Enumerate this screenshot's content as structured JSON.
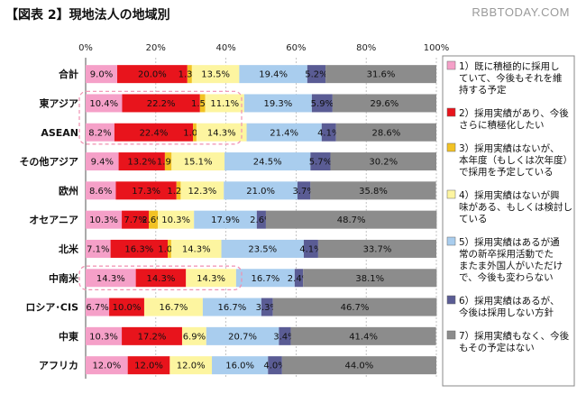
{
  "title": "【図表 2】現地法人の地域別",
  "watermark": "RBBTODAY.COM",
  "chart_data": {
    "type": "bar",
    "stacked": true,
    "horizontal": true,
    "xlim": [
      0,
      100
    ],
    "x_ticks": [
      "0%",
      "20%",
      "40%",
      "60%",
      "80%",
      "100%"
    ],
    "categories": [
      "合計",
      "東アジア",
      "ASEAN",
      "その他アジア",
      "欧州",
      "オセアニア",
      "北米",
      "中南米",
      "ロシア･CIS",
      "中東",
      "アフリカ"
    ],
    "highlighted_categories": [
      "東アジア",
      "ASEAN",
      "中南米"
    ],
    "series": [
      {
        "name": "1）既に積極的に採用していて、今後もそれを維持する予定",
        "color": "#f5a0c8",
        "values": [
          9.0,
          10.4,
          8.2,
          9.4,
          8.6,
          10.3,
          7.1,
          14.3,
          6.7,
          10.3,
          12.0
        ],
        "labels": [
          "9.0%",
          "10.4%",
          "8.2%",
          "9.4%",
          "8.6%",
          "10.3%",
          "7.1%",
          "14.3%",
          "6.7%",
          "10.3%",
          "12.0%"
        ]
      },
      {
        "name": "2）採用実績があり、今後さらに積極化したい",
        "color": "#e8141c",
        "values": [
          20.0,
          22.2,
          22.4,
          13.2,
          17.3,
          7.7,
          16.3,
          14.3,
          10.0,
          17.2,
          12.0
        ],
        "labels": [
          "20.0%",
          "22.2%",
          "22.4%",
          "13.2%",
          "17.3%",
          "7.7%",
          "16.3%",
          "14.3%",
          "10.0%",
          "17.2%",
          "12.0%"
        ]
      },
      {
        "name": "3）採用実績はないが、本年度（もしくは次年度）で採用を予定している",
        "color": "#f2c224",
        "values": [
          1.3,
          1.5,
          1.0,
          1.9,
          1.2,
          2.6,
          1.0,
          0,
          0,
          0,
          0
        ],
        "labels": [
          "1.3%",
          "1.5%",
          "1.0%",
          "1.9%",
          "1.2%",
          "2.6%",
          "1.0%",
          "",
          "",
          "",
          ""
        ]
      },
      {
        "name": "4）採用実績はないが興味がある、もしくは検討している",
        "color": "#fdf5a0",
        "values": [
          13.5,
          11.1,
          14.3,
          15.1,
          12.3,
          10.3,
          14.3,
          14.3,
          16.7,
          6.9,
          12.0
        ],
        "labels": [
          "13.5%",
          "11.1%",
          "14.3%",
          "15.1%",
          "12.3%",
          "10.3%",
          "14.3%",
          "14.3%",
          "16.7%",
          "6.9%",
          "12.0%"
        ]
      },
      {
        "name": "5）採用実績はあるが通常の新卒採用活動でたまたま外国人がいただけで、今後も変わらない",
        "color": "#a9cdee",
        "values": [
          19.4,
          19.3,
          21.4,
          24.5,
          21.0,
          17.9,
          23.5,
          16.7,
          16.7,
          20.7,
          16.0
        ],
        "labels": [
          "19.4%",
          "19.3%",
          "21.4%",
          "24.5%",
          "21.0%",
          "17.9%",
          "23.5%",
          "16.7%",
          "16.7%",
          "20.7%",
          "16.0%"
        ]
      },
      {
        "name": "6）採用実績はあるが、今後は採用しない方針",
        "color": "#5a5c94",
        "values": [
          5.2,
          5.9,
          4.1,
          5.7,
          3.7,
          2.6,
          4.1,
          2.4,
          3.3,
          3.4,
          4.0
        ],
        "labels": [
          "5.2%",
          "5.9%",
          "4.1%",
          "5.7%",
          "3.7%",
          "2.6%",
          "4.1%",
          "2.4%",
          "3.3%",
          "3.4%",
          "4.0%"
        ]
      },
      {
        "name": "7）採用実績もなく、今後もその予定はない",
        "color": "#8c8c8c",
        "values": [
          31.6,
          29.6,
          28.6,
          30.2,
          35.8,
          48.7,
          33.7,
          38.1,
          46.7,
          41.4,
          44.0
        ],
        "labels": [
          "31.6%",
          "29.6%",
          "28.6%",
          "30.2%",
          "35.8%",
          "48.7%",
          "33.7%",
          "38.1%",
          "46.7%",
          "41.4%",
          "44.0%"
        ]
      }
    ],
    "legend": [
      {
        "marker": "#f5a0c8",
        "lines": [
          "1）既に積極的に採用し",
          "ていて、今後もそれを維",
          "持する予定"
        ]
      },
      {
        "marker": "#e8141c",
        "lines": [
          "2）採用実績があり、今後",
          "さらに積極化したい"
        ]
      },
      {
        "marker": "#f2c224",
        "lines": [
          "3）採用実績はないが、",
          "本年度（もしくは次年度）",
          "で採用を予定している"
        ]
      },
      {
        "marker": "#fdf5a0",
        "lines": [
          "4）採用実績はないが興",
          "味がある、もしくは検討し",
          "ている"
        ]
      },
      {
        "marker": "#a9cdee",
        "lines": [
          "5）採用実績はあるが通",
          "常の新卒採用活動でた",
          "またま外国人がいただけ",
          "で、今後も変わらない"
        ]
      },
      {
        "marker": "#5a5c94",
        "lines": [
          "6）採用実績はあるが、",
          "今後は採用しない方針"
        ]
      },
      {
        "marker": "#8c8c8c",
        "lines": [
          "7）採用実績もなく、今後",
          "もその予定はない"
        ]
      }
    ],
    "legend_placement": "right",
    "grid": true
  }
}
